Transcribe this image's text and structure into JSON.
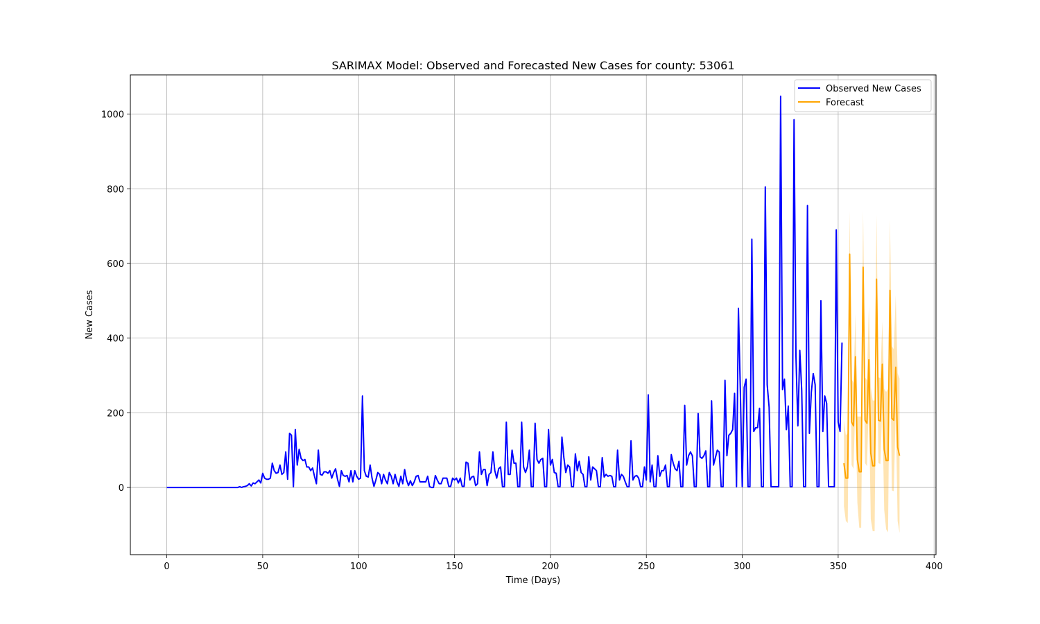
{
  "chart_data": {
    "type": "line",
    "title": "SARIMAX Model: Observed and Forecasted New Cases for county: 53061",
    "xlabel": "Time (Days)",
    "ylabel": "New Cases",
    "xlim": [
      -19,
      401
    ],
    "ylim": [
      -180,
      1105
    ],
    "xticks": [
      0,
      50,
      100,
      150,
      200,
      250,
      300,
      350,
      400
    ],
    "yticks": [
      0,
      200,
      400,
      600,
      800,
      1000
    ],
    "grid": true,
    "legend_position": "top-right",
    "colors": {
      "observed": "#0000ff",
      "forecast": "#ffa500",
      "ci": "#ffa500"
    },
    "series": [
      {
        "name": "Observed New Cases",
        "x_start": 0,
        "values": [
          0,
          0,
          0,
          0,
          0,
          0,
          0,
          0,
          0,
          0,
          0,
          0,
          0,
          0,
          0,
          0,
          0,
          0,
          0,
          0,
          0,
          0,
          0,
          0,
          0,
          0,
          0,
          0,
          0,
          0,
          0,
          0,
          0,
          0,
          0,
          0,
          0,
          0,
          2,
          0,
          2,
          3,
          5,
          10,
          4,
          12,
          10,
          15,
          20,
          12,
          38,
          25,
          22,
          22,
          25,
          65,
          45,
          38,
          40,
          60,
          35,
          40,
          95,
          22,
          145,
          140,
          2,
          155,
          60,
          102,
          78,
          72,
          75,
          55,
          55,
          45,
          52,
          30,
          10,
          100,
          35,
          33,
          42,
          42,
          38,
          45,
          25,
          40,
          50,
          22,
          3,
          45,
          32,
          30,
          32,
          15,
          45,
          15,
          45,
          30,
          22,
          25,
          245,
          45,
          30,
          28,
          60,
          25,
          3,
          20,
          40,
          35,
          10,
          35,
          20,
          10,
          40,
          30,
          10,
          35,
          15,
          3,
          30,
          10,
          48,
          20,
          5,
          18,
          5,
          15,
          30,
          32,
          15,
          15,
          15,
          15,
          30,
          2,
          0,
          0,
          32,
          20,
          10,
          10,
          25,
          25,
          25,
          3,
          3,
          25,
          20,
          25,
          12,
          25,
          3,
          3,
          68,
          65,
          20,
          28,
          30,
          5,
          10,
          95,
          35,
          48,
          48,
          5,
          35,
          40,
          95,
          45,
          25,
          50,
          55,
          2,
          2,
          175,
          35,
          35,
          100,
          65,
          65,
          2,
          2,
          175,
          55,
          40,
          55,
          100,
          2,
          2,
          172,
          75,
          65,
          75,
          78,
          2,
          2,
          155,
          60,
          75,
          40,
          38,
          2,
          2,
          135,
          80,
          40,
          60,
          55,
          2,
          2,
          90,
          45,
          70,
          40,
          35,
          2,
          2,
          82,
          20,
          55,
          50,
          45,
          2,
          2,
          80,
          28,
          35,
          30,
          32,
          30,
          2,
          2,
          100,
          20,
          35,
          30,
          15,
          2,
          2,
          125,
          20,
          30,
          32,
          25,
          2,
          2,
          55,
          20,
          248,
          15,
          60,
          2,
          2,
          85,
          30,
          45,
          45,
          60,
          2,
          2,
          88,
          65,
          50,
          45,
          70,
          2,
          2,
          220,
          60,
          85,
          95,
          85,
          2,
          2,
          198,
          82,
          78,
          85,
          98,
          2,
          2,
          232,
          60,
          80,
          100,
          95,
          2,
          2,
          287,
          85,
          140,
          145,
          155,
          252,
          2,
          480,
          260,
          2,
          268,
          290,
          2,
          2,
          665,
          150,
          160,
          160,
          212,
          2,
          2,
          805,
          275,
          215,
          2,
          2,
          2,
          2,
          2,
          1048,
          262,
          290,
          155,
          218,
          2,
          2,
          985,
          350,
          165,
          367,
          260,
          2,
          2,
          755,
          145,
          255,
          305,
          275,
          2,
          2,
          500,
          150,
          245,
          225,
          2,
          2,
          2,
          2,
          690,
          175,
          150,
          388
        ]
      },
      {
        "name": "Forecast",
        "x_start": 353,
        "values": [
          65,
          25,
          25,
          625,
          175,
          165,
          350,
          75,
          42,
          42,
          590,
          180,
          172,
          342,
          92,
          58,
          58,
          558,
          180,
          178,
          330,
          102,
          72,
          72,
          528,
          185,
          180,
          322,
          108,
          85
        ],
        "lower": [
          -50,
          -90,
          -95,
          510,
          60,
          50,
          235,
          -40,
          -108,
          -108,
          475,
          65,
          57,
          227,
          -85,
          -117,
          -117,
          443,
          65,
          63,
          215,
          -60,
          -112,
          -120,
          413,
          -8,
          -10,
          207,
          -90,
          -122
        ],
        "upper": [
          180,
          140,
          145,
          740,
          290,
          280,
          465,
          190,
          190,
          190,
          740,
          295,
          287,
          487,
          269,
          233,
          233,
          730,
          295,
          293,
          445,
          264,
          256,
          264,
          718,
          378,
          370,
          515,
          306,
          292
        ]
      }
    ]
  }
}
